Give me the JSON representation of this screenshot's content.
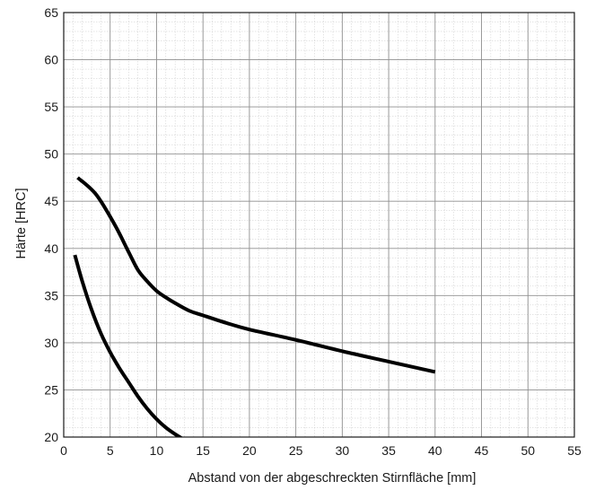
{
  "chart_data": {
    "type": "line",
    "xlabel": "Abstand von der abgeschreckten Stirnfläche [mm]",
    "ylabel": "Härte [HRC]",
    "xlim": [
      0,
      55
    ],
    "ylim": [
      20,
      65
    ],
    "x_ticks": [
      0,
      5,
      10,
      15,
      20,
      25,
      30,
      35,
      40,
      45,
      50,
      55
    ],
    "y_ticks": [
      20,
      25,
      30,
      35,
      40,
      45,
      50,
      55,
      60,
      65
    ],
    "grid": true,
    "minor_grid": true,
    "legend": "none",
    "line_color": "#000000",
    "series": [
      {
        "x": [
          1.5,
          3.5,
          5.5,
          7.0,
          8.0,
          9.0,
          10.0,
          11.0,
          12.0,
          13.5,
          15.0,
          17.5,
          20.0,
          25.0,
          30.0,
          35.0,
          40.0
        ],
        "y": [
          47.5,
          45.7,
          42.5,
          39.6,
          37.7,
          36.5,
          35.5,
          34.8,
          34.2,
          33.4,
          32.9,
          32.1,
          31.4,
          30.3,
          29.1,
          28.0,
          26.9
        ]
      },
      {
        "x": [
          1.2,
          2.0,
          3.0,
          4.0,
          5.0,
          6.0,
          7.0,
          8.0,
          9.0,
          10.0,
          11.0,
          12.0,
          13.0
        ],
        "y": [
          39.3,
          36.5,
          33.5,
          31.0,
          29.0,
          27.3,
          25.8,
          24.3,
          23.0,
          21.9,
          21.0,
          20.3,
          19.7
        ]
      }
    ]
  }
}
